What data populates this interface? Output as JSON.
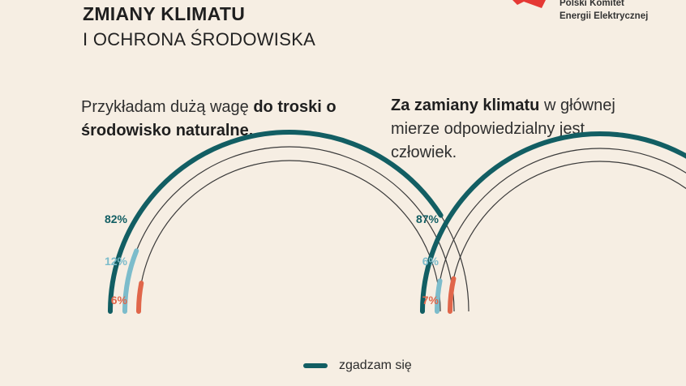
{
  "header": {
    "title": "ZMIANY KLIMATU",
    "subtitle": "I OCHRONA ŚRODOWISKA"
  },
  "logo": {
    "line1": "Polski Komitet",
    "line2": "Energii Elektrycznej",
    "accent_color": "#e53935"
  },
  "statements": [
    {
      "pre": "Przykładam dużą wagę ",
      "bold": "do troski o środowisko naturalne.",
      "post": ""
    },
    {
      "pre": "",
      "bold": "Za zamiany klimatu",
      "post": " w głównej mierze odpowiedzialny jest człowiek."
    }
  ],
  "colors": {
    "agree": "#125e63",
    "neutral": "#7cbccb",
    "disagree": "#e0664a",
    "track": "#3a3a3a",
    "background": "#f6eee3"
  },
  "legend": {
    "agree_label": "zgadzam się"
  },
  "chart_data": [
    {
      "type": "radial-bar",
      "series": [
        {
          "label": "82%",
          "value": 82,
          "color": "#125e63"
        },
        {
          "label": "12%",
          "value": 12,
          "color": "#7cbccb"
        },
        {
          "label": "6%",
          "value": 6,
          "color": "#e0664a"
        }
      ]
    },
    {
      "type": "radial-bar",
      "series": [
        {
          "label": "87%",
          "value": 87,
          "color": "#125e63"
        },
        {
          "label": "6%",
          "value": 6,
          "color": "#7cbccb"
        },
        {
          "label": "7%",
          "value": 7,
          "color": "#e0664a"
        }
      ]
    }
  ]
}
